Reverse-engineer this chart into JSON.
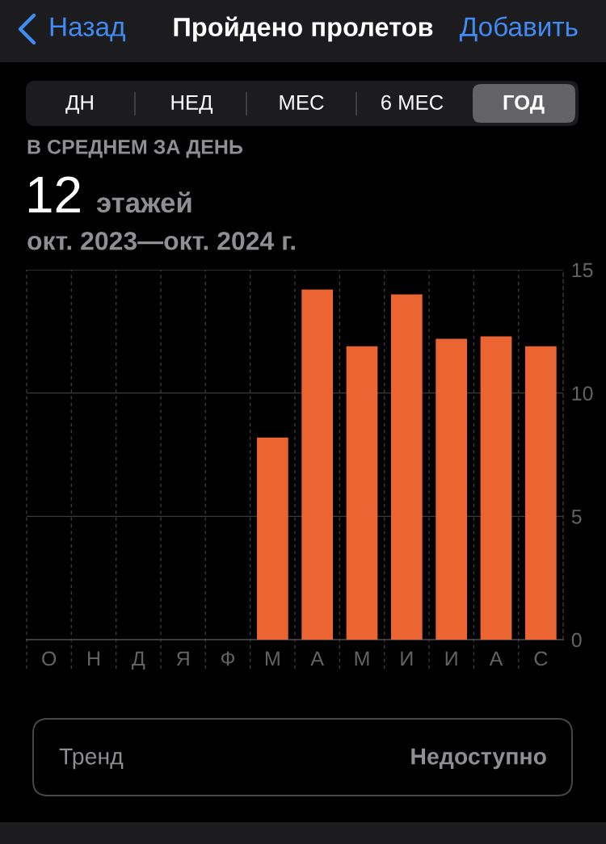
{
  "chart_data": {
    "type": "bar",
    "title": "Пройдено пролетов",
    "subtitle": "В СРЕДНЕМ ЗА ДЕНЬ",
    "categories": [
      "О",
      "Н",
      "Д",
      "Я",
      "Ф",
      "М",
      "А",
      "М",
      "И",
      "И",
      "А",
      "С"
    ],
    "values": [
      null,
      null,
      null,
      null,
      null,
      8.2,
      14.2,
      11.9,
      14.0,
      12.2,
      12.3,
      11.9
    ],
    "color": "#eb6532",
    "ylim": [
      0,
      15
    ],
    "yticks": [
      0,
      5,
      10,
      15
    ],
    "grid": true,
    "annotations": [
      "Назад",
      "Добавить",
      "ДН",
      "НЕД",
      "МЕС",
      "6 МЕС",
      "ГОД",
      "12",
      "этажей",
      "окт. 2023—окт. 2024 г.",
      "Тренд",
      "Недоступно"
    ]
  }
}
